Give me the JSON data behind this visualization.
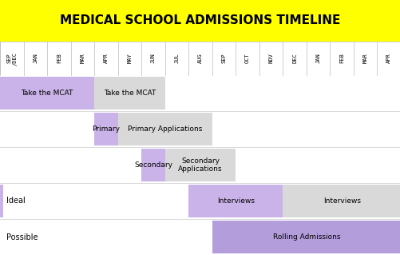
{
  "title": "MEDICAL SCHOOL ADMISSIONS TIMELINE",
  "title_bg": "#ffff00",
  "title_fontsize": 11,
  "months": [
    "SEP\n/DEC",
    "JAN",
    "FEB",
    "MAR",
    "APR",
    "MAY",
    "JUN",
    "JUL",
    "AUG",
    "SEP",
    "OCT",
    "NOV",
    "DEC",
    "JAN",
    "FEB",
    "MAR",
    "APR"
  ],
  "n_cols": 17,
  "rows": [
    {
      "label": "",
      "label_color": null,
      "segments": [
        {
          "start": 0,
          "end": 4,
          "color": "#c9b3e8",
          "text": "Take the MCAT"
        },
        {
          "start": 4,
          "end": 7,
          "color": "#d9d9d9",
          "text": "Take the MCAT"
        }
      ]
    },
    {
      "label": "",
      "label_color": null,
      "segments": [
        {
          "start": 4,
          "end": 5,
          "color": "#c9b3e8",
          "text": "Primary"
        },
        {
          "start": 5,
          "end": 9,
          "color": "#d9d9d9",
          "text": "Primary Applications"
        }
      ]
    },
    {
      "label": "",
      "label_color": null,
      "segments": [
        {
          "start": 6,
          "end": 7,
          "color": "#c9b3e8",
          "text": "Secondary"
        },
        {
          "start": 7,
          "end": 10,
          "color": "#d9d9d9",
          "text": "Secondary\nApplications"
        }
      ]
    },
    {
      "label": "Ideal",
      "label_color": "#c9b3e8",
      "segments": [
        {
          "start": 8,
          "end": 12,
          "color": "#c9b3e8",
          "text": "Interviews"
        },
        {
          "start": 12,
          "end": 17,
          "color": "#d9d9d9",
          "text": "Interviews"
        }
      ]
    },
    {
      "label": "Possible",
      "label_color": null,
      "segments": [
        {
          "start": 9,
          "end": 17,
          "color": "#b39ddb",
          "text": "Rolling Admissions"
        }
      ]
    }
  ]
}
